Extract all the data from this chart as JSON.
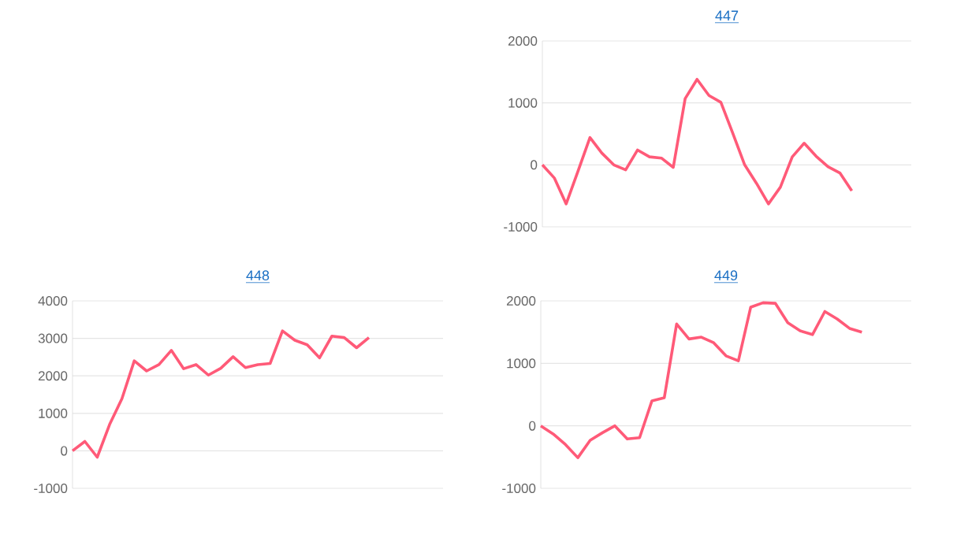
{
  "chart_data": [
    {
      "type": "line",
      "title": "447",
      "categories": [
        null,
        null,
        null,
        null,
        null,
        null,
        null,
        null,
        null,
        null,
        null,
        null,
        null,
        null,
        null,
        null,
        null,
        null,
        null,
        null,
        null,
        null,
        null,
        null,
        null,
        null,
        null,
        null,
        null,
        null,
        null,
        null
      ],
      "values": [
        0,
        -210,
        -630,
        -100,
        440,
        190,
        0,
        -80,
        240,
        130,
        110,
        -40,
        1070,
        1380,
        1120,
        1010,
        510,
        0,
        -300,
        -630,
        -360,
        130,
        350,
        140,
        -30,
        -130,
        -420,
        null,
        null,
        null,
        null,
        null
      ],
      "color": "#ff5a78",
      "ylim": [
        -1000,
        2000
      ],
      "yticks": [
        -1000,
        0,
        1000,
        2000
      ],
      "grid": "y",
      "marker": "none",
      "tick_labels": "y"
    },
    {
      "type": "line",
      "title": "448",
      "categories": [
        null,
        null,
        null,
        null,
        null,
        null,
        null,
        null,
        null,
        null,
        null,
        null,
        null,
        null,
        null,
        null,
        null,
        null,
        null,
        null,
        null,
        null,
        null,
        null,
        null,
        null,
        null,
        null,
        null,
        null,
        null
      ],
      "values": [
        0,
        250,
        -170,
        700,
        1390,
        2400,
        2130,
        2300,
        2680,
        2190,
        2300,
        2020,
        2200,
        2510,
        2220,
        2300,
        2330,
        3200,
        2950,
        2830,
        2480,
        3060,
        3020,
        2750,
        3020,
        null,
        null,
        null,
        null,
        null,
        null
      ],
      "color": "#ff5a78",
      "ylim": [
        -1000,
        4000
      ],
      "yticks": [
        -1000,
        0,
        1000,
        2000,
        3000,
        4000
      ],
      "grid": "y",
      "marker": "none",
      "tick_labels": "y"
    },
    {
      "type": "line",
      "title": "449",
      "categories": [
        null,
        null,
        null,
        null,
        null,
        null,
        null,
        null,
        null,
        null,
        null,
        null,
        null,
        null,
        null,
        null,
        null,
        null,
        null,
        null,
        null,
        null,
        null,
        null,
        null,
        null,
        null,
        null,
        null,
        null,
        null
      ],
      "values": [
        0,
        -130,
        -300,
        -510,
        -230,
        -110,
        0,
        -210,
        -190,
        400,
        450,
        1630,
        1390,
        1420,
        1330,
        1120,
        1040,
        1900,
        1970,
        1960,
        1650,
        1520,
        1460,
        1830,
        1710,
        1560,
        1500,
        null,
        null,
        null,
        null
      ],
      "color": "#ff5a78",
      "ylim": [
        -1000,
        2000
      ],
      "yticks": [
        -1000,
        0,
        1000,
        2000
      ],
      "grid": "y",
      "marker": "none",
      "tick_labels": "y"
    }
  ]
}
